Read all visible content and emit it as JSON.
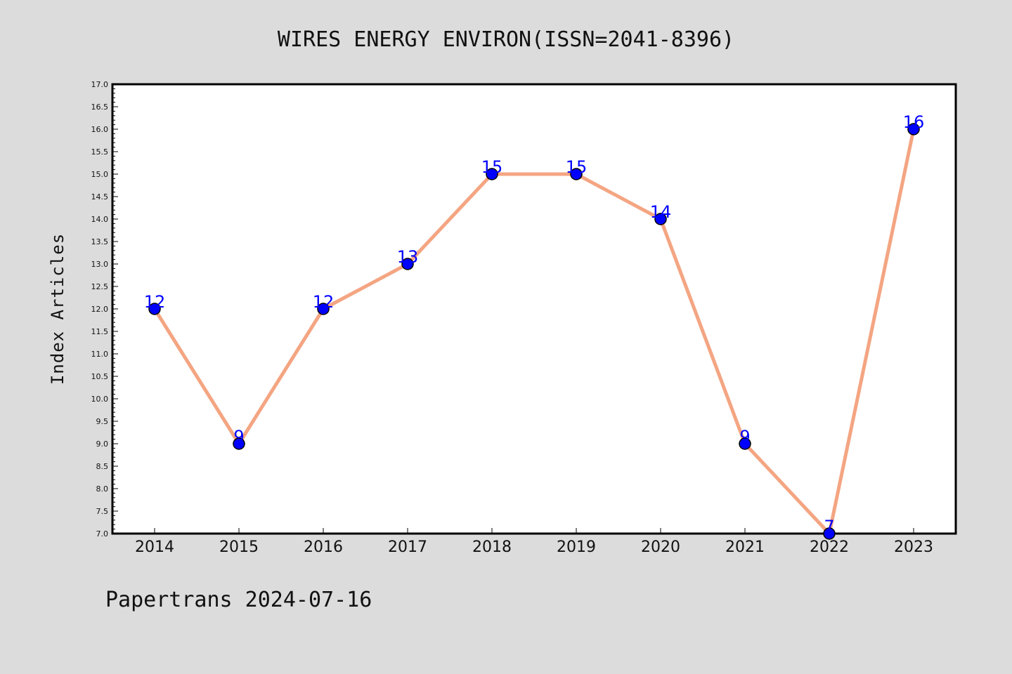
{
  "chart_data": {
    "type": "line",
    "title": "WIRES ENERGY ENVIRON(ISSN=2041-8396)",
    "ylabel": "Index Articles",
    "xlabel": "",
    "categories": [
      "2014",
      "2015",
      "2016",
      "2017",
      "2018",
      "2019",
      "2020",
      "2021",
      "2022",
      "2023"
    ],
    "series": [
      {
        "values": [
          12,
          9,
          12,
          13,
          15,
          15,
          14,
          9,
          7,
          16
        ]
      }
    ],
    "ylim": [
      7.0,
      17.0
    ],
    "yticks": [
      "7.0",
      "7.5",
      "8.0",
      "8.5",
      "9.0",
      "9.5",
      "10.0",
      "10.5",
      "11.0",
      "11.5",
      "12.0",
      "12.5",
      "13.0",
      "13.5",
      "14.0",
      "14.5",
      "15.0",
      "15.5",
      "16.0",
      "16.5",
      "17.0"
    ],
    "data_labels": [
      "12",
      "9",
      "12",
      "13",
      "15",
      "15",
      "14",
      "9",
      "7",
      "16"
    ],
    "grid": false,
    "colors": {
      "line": "#f4a582",
      "marker": "#0000ff",
      "label": "#0000ff",
      "background": "#dcdcdc",
      "plot_bg": "#ffffff"
    }
  },
  "footer": "Papertrans 2024-07-16"
}
